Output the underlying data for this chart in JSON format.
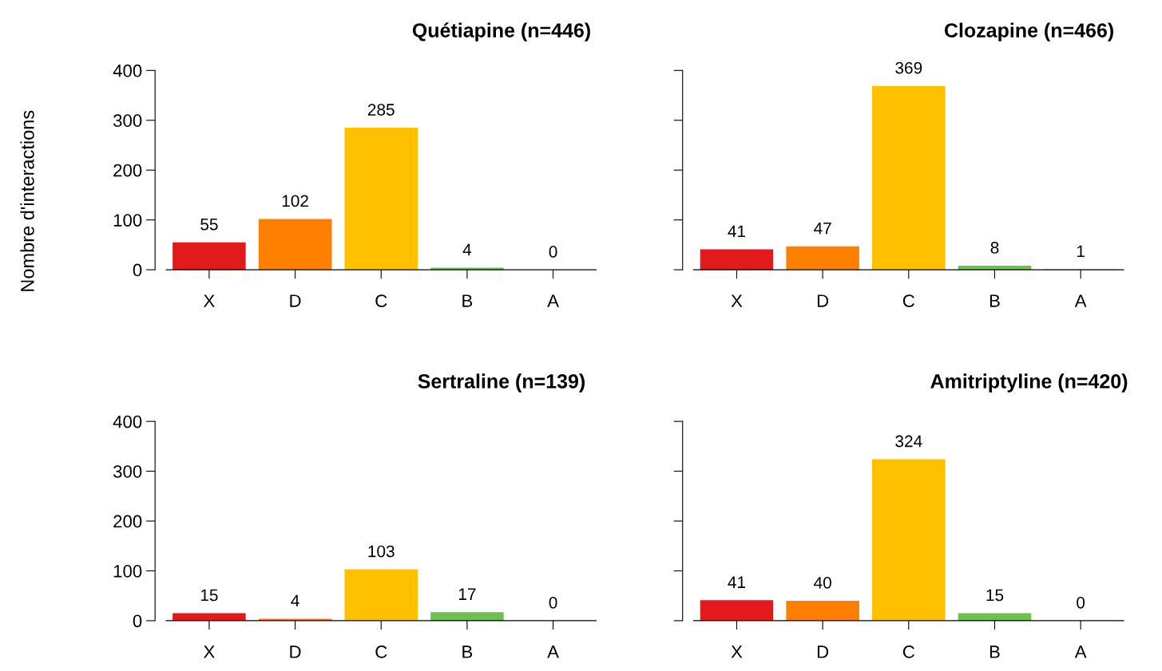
{
  "chart_data": [
    {
      "type": "bar",
      "title": "Quétiapine (n=446)",
      "ylabel": "Nombre d'interactions",
      "categories": [
        "X",
        "D",
        "C",
        "B",
        "A"
      ],
      "values": [
        55,
        102,
        285,
        4,
        0
      ],
      "colors": [
        "#e31a1c",
        "#ff7f00",
        "#ffc000",
        "#70c050",
        "#a0a0a0"
      ],
      "ylim": [
        0,
        400
      ],
      "yticks": [
        0,
        100,
        200,
        300,
        400
      ],
      "data_labels": true,
      "grid": false,
      "legend": false
    },
    {
      "type": "bar",
      "title": "Clozapine (n=466)",
      "categories": [
        "X",
        "D",
        "C",
        "B",
        "A"
      ],
      "values": [
        41,
        47,
        369,
        8,
        1
      ],
      "colors": [
        "#e31a1c",
        "#ff7f00",
        "#ffc000",
        "#70c050",
        "#a0a0a0"
      ],
      "ylim": [
        0,
        400
      ],
      "yticks": [
        0,
        100,
        200,
        300,
        400
      ],
      "tick_labels": "x",
      "data_labels": true,
      "grid": false,
      "legend": false
    },
    {
      "type": "bar",
      "title": "Sertraline (n=139)",
      "categories": [
        "X",
        "D",
        "C",
        "B",
        "A"
      ],
      "values": [
        15,
        4,
        103,
        17,
        0
      ],
      "colors": [
        "#e31a1c",
        "#ff7f00",
        "#ffc000",
        "#70c050",
        "#a0a0a0"
      ],
      "ylim": [
        0,
        400
      ],
      "yticks": [
        0,
        100,
        200,
        300,
        400
      ],
      "data_labels": true,
      "grid": false,
      "legend": false
    },
    {
      "type": "bar",
      "title": "Amitriptyline (n=420)",
      "categories": [
        "X",
        "D",
        "C",
        "B",
        "A"
      ],
      "values": [
        41,
        40,
        324,
        15,
        0
      ],
      "colors": [
        "#e31a1c",
        "#ff7f00",
        "#ffc000",
        "#70c050",
        "#a0a0a0"
      ],
      "ylim": [
        0,
        400
      ],
      "yticks": [
        0,
        100,
        200,
        300,
        400
      ],
      "tick_labels": "x",
      "data_labels": true,
      "grid": false,
      "legend": false
    }
  ]
}
